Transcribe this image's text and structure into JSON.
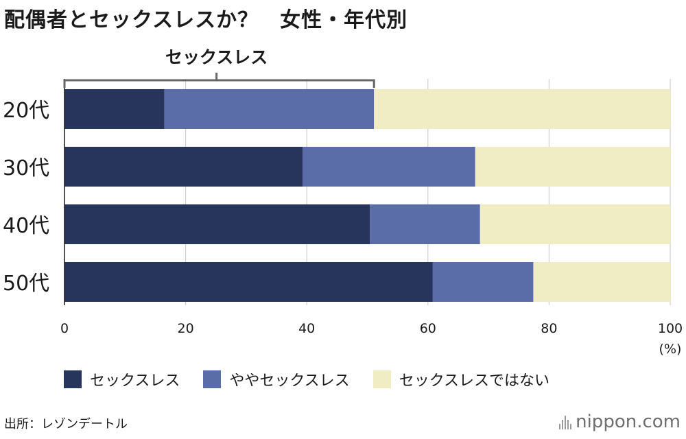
{
  "title": "配偶者とセックスレスか？　女性・年代別",
  "source": "出所：レゾンデートル",
  "brand": "nippon.com",
  "colors": {
    "sexless": "#27345c",
    "somewhat": "#5b6da8",
    "not": "#f0edc4",
    "grid": "#cfcfcf",
    "bracket": "#666666"
  },
  "chart_data": {
    "type": "bar",
    "orientation": "horizontal",
    "stacked": true,
    "categories": [
      "20代",
      "30代",
      "40代",
      "50代"
    ],
    "series": [
      {
        "name": "セックスレス",
        "values": [
          16.5,
          39.3,
          50.4,
          60.8
        ]
      },
      {
        "name": "ややセックスレス",
        "values": [
          34.6,
          28.5,
          18.2,
          16.6
        ]
      },
      {
        "name": "セックスレスではない",
        "values": [
          48.9,
          32.2,
          31.4,
          22.6
        ]
      }
    ],
    "xlim": [
      0,
      100
    ],
    "xticks": [
      0,
      20,
      40,
      60,
      80,
      100
    ],
    "xtick_labels": [
      "0",
      "20",
      "40",
      "60",
      "80",
      "100"
    ],
    "xunit": "(%)",
    "grid": true,
    "legend_position": "bottom",
    "annotation": {
      "label": "セックスレス",
      "from": 0,
      "to": 51.1
    }
  }
}
